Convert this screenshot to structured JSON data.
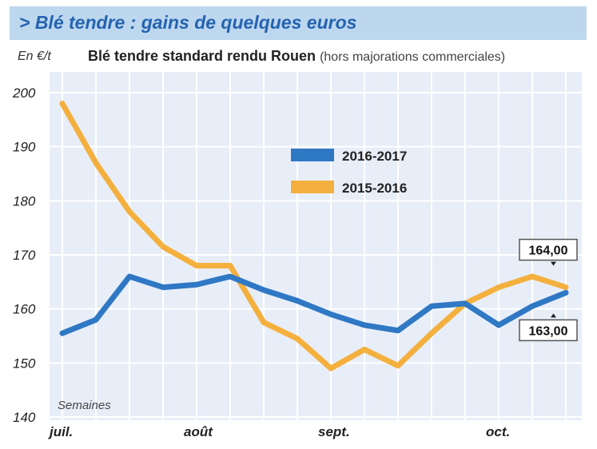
{
  "header": {
    "title": "> Blé tendre : gains de quelques euros"
  },
  "chart_meta": {
    "unit_label": "En €/t",
    "subtitle_bold": "Blé tendre standard rendu Rouen",
    "subtitle_note": "(hors majorations commerciales)",
    "xlabel": "Semaines"
  },
  "chart_data": {
    "type": "line",
    "title": "Blé tendre standard rendu Rouen (hors majorations commerciales)",
    "ylabel": "En €/t",
    "xlabel": "Semaines",
    "ylim": [
      140,
      200
    ],
    "yticks": [
      140,
      150,
      160,
      170,
      180,
      190,
      200
    ],
    "x_month_labels": [
      {
        "label": "juil.",
        "week": 0
      },
      {
        "label": "août",
        "week": 4
      },
      {
        "label": "sept.",
        "week": 8
      },
      {
        "label": "oct.",
        "week": 13
      }
    ],
    "grid": true,
    "legend_position": "center-top",
    "series": [
      {
        "name": "2016-2017",
        "color": "#2f78c4",
        "values": [
          155.5,
          158,
          166,
          164,
          164.5,
          166,
          163.5,
          161.5,
          159,
          157,
          156,
          160.5,
          161,
          157,
          160.5,
          163
        ]
      },
      {
        "name": "2015-2016",
        "color": "#f4b03e",
        "values": [
          198,
          187,
          178,
          171.5,
          168,
          168,
          157.5,
          154.5,
          149,
          152.5,
          149.5,
          155.5,
          161,
          164,
          166,
          164
        ]
      }
    ],
    "annotations": [
      {
        "text": "164,00",
        "series": "2015-2016"
      },
      {
        "text": "163,00",
        "series": "2016-2017"
      }
    ]
  }
}
